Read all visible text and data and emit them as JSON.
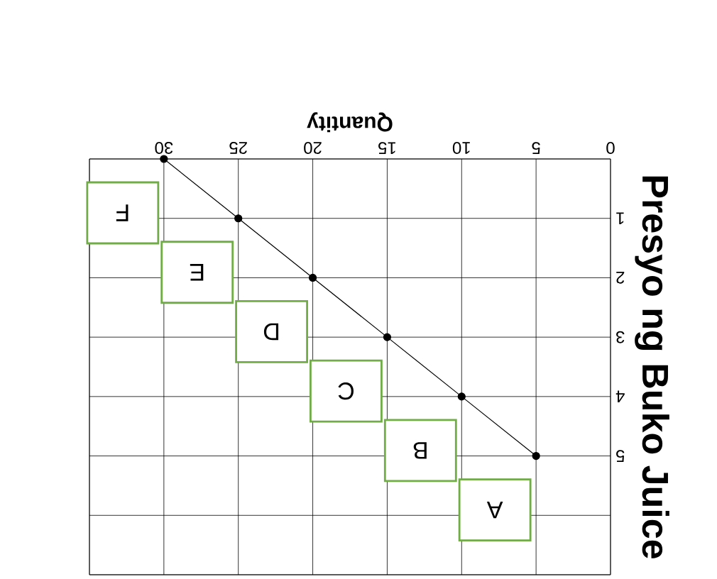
{
  "chart_data": {
    "type": "line",
    "xlabel": "Quantity",
    "ylabel": "Presyo ng Buko Juice",
    "x": [
      30,
      25,
      20,
      15,
      10,
      5
    ],
    "series": [
      {
        "color": "#000000",
        "values": [
          0,
          1,
          2,
          3,
          4,
          5
        ]
      }
    ],
    "xlim": [
      35,
      0
    ],
    "ylim": [
      7,
      0
    ],
    "xticks": [
      0,
      5,
      10,
      15,
      20,
      25,
      30,
      {
        "value": 35,
        "label": null
      }
    ],
    "yticks": [
      {
        "value": 0,
        "label": null
      },
      1,
      2,
      3,
      4,
      5,
      {
        "value": 6,
        "label": null
      },
      {
        "value": 7,
        "label": null
      }
    ],
    "grid": true,
    "marker": "circle",
    "line_style": "solid",
    "annotations": [
      "A",
      "B",
      "C",
      "D",
      "E",
      "F"
    ]
  }
}
